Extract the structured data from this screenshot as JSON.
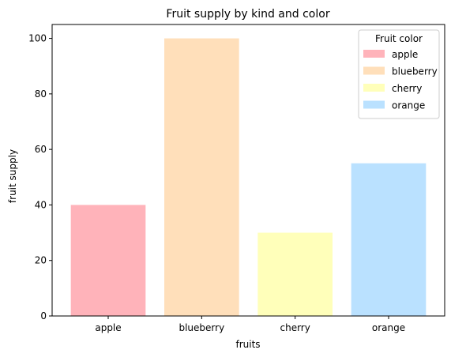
{
  "chart_data": {
    "type": "bar",
    "title": "Fruit supply by kind and color",
    "xlabel": "fruits",
    "ylabel": "fruit supply",
    "categories": [
      "apple",
      "blueberry",
      "cherry",
      "orange"
    ],
    "values": [
      40,
      100,
      30,
      55
    ],
    "colors": [
      "#ffb3ba",
      "#ffdfba",
      "#ffffba",
      "#bae1ff"
    ],
    "ylim": [
      0,
      105
    ],
    "yticks": [
      "0",
      "20",
      "40",
      "60",
      "80",
      "100"
    ],
    "grid": false,
    "legend": {
      "title": "Fruit color",
      "placement": "top-right",
      "entries": [
        "apple",
        "blueberry",
        "cherry",
        "orange"
      ]
    }
  }
}
